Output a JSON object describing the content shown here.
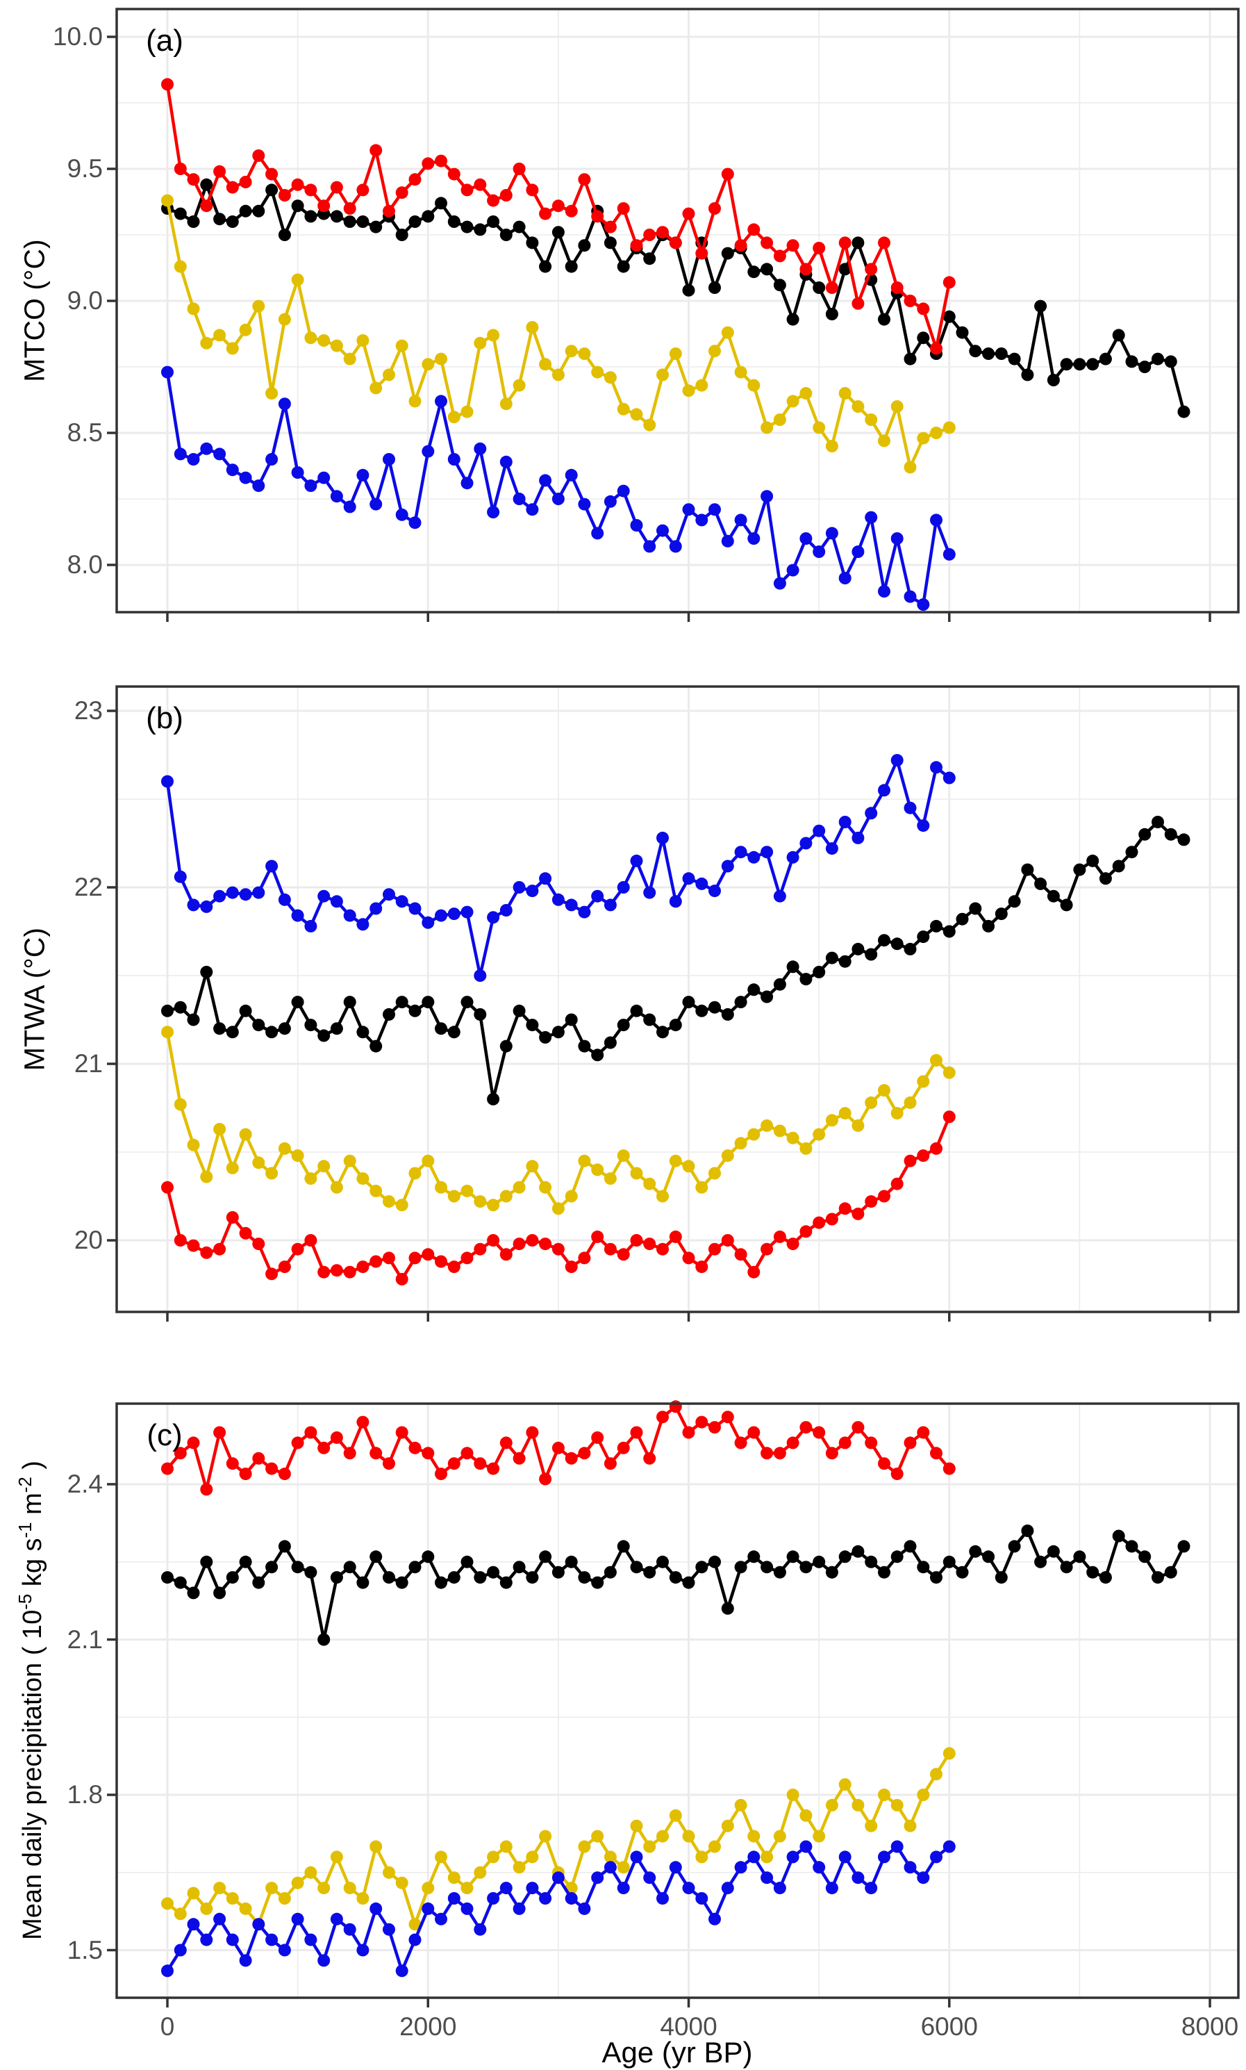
{
  "figure": {
    "x_axis": {
      "label": "Age (yr BP)",
      "major_ticks": [
        0,
        2000,
        4000,
        6000,
        8000
      ],
      "minor_ticks": [
        1000,
        3000,
        5000,
        7000
      ],
      "tick_labels": [
        "0",
        "2000",
        "4000",
        "6000",
        "8000"
      ],
      "range": [
        -390,
        8220
      ],
      "sample_step_years": 100
    },
    "series_colors": {
      "red": "#f80000",
      "black": "#000000",
      "yellow": "#e2be00",
      "blue": "#0b0be6"
    },
    "grid_color": "#ebebeb",
    "tick_label_color": "#4d4d4d",
    "panel_border_color": "#333333"
  },
  "chart_data": [
    {
      "type": "line",
      "panel_label": "(a)",
      "ylabel_parts": [
        {
          "text": "MTCO (°C)"
        }
      ],
      "yticks_major": [
        10.0,
        9.5,
        9.0,
        8.5,
        8.0
      ],
      "ytick_labels": [
        "10.0",
        "9.5",
        "9.0",
        "8.5",
        "8.0"
      ],
      "yticks_minor": [
        9.75,
        9.25,
        8.75,
        8.25
      ],
      "ylim": [
        7.87,
        10.11
      ],
      "series": [
        {
          "name": "black",
          "color_key": "black",
          "x_start": 0,
          "values": [
            9.35,
            9.33,
            9.3,
            9.44,
            9.31,
            9.3,
            9.34,
            9.34,
            9.42,
            9.25,
            9.36,
            9.32,
            9.33,
            9.32,
            9.3,
            9.3,
            9.28,
            9.32,
            9.25,
            9.3,
            9.32,
            9.37,
            9.3,
            9.28,
            9.27,
            9.3,
            9.25,
            9.28,
            9.22,
            9.13,
            9.26,
            9.13,
            9.21,
            9.34,
            9.22,
            9.13,
            9.2,
            9.16,
            9.25,
            9.22,
            9.04,
            9.22,
            9.05,
            9.18,
            9.2,
            9.11,
            9.12,
            9.06,
            8.93,
            9.1,
            9.05,
            8.95,
            9.12,
            9.22,
            9.08,
            8.93,
            9.03,
            8.78,
            8.86,
            8.8,
            8.94,
            8.88,
            8.81,
            8.8,
            8.8,
            8.78,
            8.72,
            8.98,
            8.7,
            8.76,
            8.76,
            8.76,
            8.78,
            8.87,
            8.77,
            8.75,
            8.78,
            8.77,
            8.58
          ]
        },
        {
          "name": "yellow",
          "color_key": "yellow",
          "x_start": 0,
          "values": [
            9.38,
            9.13,
            8.97,
            8.84,
            8.87,
            8.82,
            8.89,
            8.98,
            8.65,
            8.93,
            9.08,
            8.86,
            8.85,
            8.83,
            8.78,
            8.85,
            8.67,
            8.72,
            8.83,
            8.62,
            8.76,
            8.78,
            8.56,
            8.58,
            8.84,
            8.87,
            8.61,
            8.68,
            8.9,
            8.76,
            8.72,
            8.81,
            8.8,
            8.73,
            8.71,
            8.59,
            8.57,
            8.53,
            8.72,
            8.8,
            8.66,
            8.68,
            8.81,
            8.88,
            8.73,
            8.68,
            8.52,
            8.55,
            8.62,
            8.65,
            8.52,
            8.45,
            8.65,
            8.6,
            8.55,
            8.47,
            8.6,
            8.37,
            8.48,
            8.5,
            8.52
          ]
        },
        {
          "name": "blue",
          "color_key": "blue",
          "x_start": 0,
          "values": [
            8.73,
            8.42,
            8.4,
            8.44,
            8.42,
            8.36,
            8.33,
            8.3,
            8.4,
            8.61,
            8.35,
            8.3,
            8.33,
            8.26,
            8.22,
            8.34,
            8.23,
            8.4,
            8.19,
            8.16,
            8.43,
            8.62,
            8.4,
            8.31,
            8.44,
            8.2,
            8.39,
            8.25,
            8.21,
            8.32,
            8.25,
            8.34,
            8.23,
            8.12,
            8.24,
            8.28,
            8.15,
            8.07,
            8.13,
            8.07,
            8.21,
            8.17,
            8.21,
            8.09,
            8.17,
            8.1,
            8.26,
            7.93,
            7.98,
            8.1,
            8.05,
            8.12,
            7.95,
            8.05,
            8.18,
            7.9,
            8.1,
            7.88,
            7.85,
            8.17,
            8.04
          ]
        },
        {
          "name": "red",
          "color_key": "red",
          "x_start": 0,
          "values": [
            9.82,
            9.5,
            9.46,
            9.36,
            9.49,
            9.43,
            9.45,
            9.55,
            9.48,
            9.4,
            9.44,
            9.42,
            9.36,
            9.43,
            9.35,
            9.42,
            9.57,
            9.34,
            9.41,
            9.46,
            9.52,
            9.53,
            9.48,
            9.42,
            9.44,
            9.38,
            9.4,
            9.5,
            9.42,
            9.33,
            9.36,
            9.34,
            9.46,
            9.32,
            9.28,
            9.35,
            9.21,
            9.25,
            9.26,
            9.22,
            9.33,
            9.18,
            9.35,
            9.48,
            9.21,
            9.27,
            9.22,
            9.17,
            9.21,
            9.12,
            9.2,
            9.05,
            9.22,
            8.99,
            9.12,
            9.22,
            9.05,
            9.0,
            8.97,
            8.82,
            9.07
          ]
        }
      ]
    },
    {
      "type": "line",
      "panel_label": "(b)",
      "ylabel_parts": [
        {
          "text": "MTWA (°C)"
        }
      ],
      "yticks_major": [
        23,
        22,
        21,
        20
      ],
      "ytick_labels": [
        "23",
        "22",
        "21",
        "20"
      ],
      "yticks_minor": [
        22.5,
        21.5,
        20.5
      ],
      "ylim": [
        19.59,
        23.14
      ],
      "series": [
        {
          "name": "black",
          "color_key": "black",
          "x_start": 0,
          "values": [
            21.3,
            21.32,
            21.25,
            21.52,
            21.2,
            21.18,
            21.3,
            21.22,
            21.18,
            21.2,
            21.35,
            21.22,
            21.16,
            21.2,
            21.35,
            21.18,
            21.1,
            21.28,
            21.35,
            21.3,
            21.35,
            21.2,
            21.18,
            21.35,
            21.28,
            20.8,
            21.1,
            21.3,
            21.22,
            21.15,
            21.18,
            21.25,
            21.1,
            21.05,
            21.12,
            21.22,
            21.3,
            21.25,
            21.18,
            21.22,
            21.35,
            21.3,
            21.32,
            21.28,
            21.35,
            21.42,
            21.38,
            21.45,
            21.55,
            21.48,
            21.52,
            21.6,
            21.58,
            21.65,
            21.62,
            21.7,
            21.68,
            21.65,
            21.72,
            21.78,
            21.75,
            21.82,
            21.88,
            21.78,
            21.85,
            21.92,
            22.1,
            22.02,
            21.95,
            21.9,
            22.1,
            22.15,
            22.05,
            22.12,
            22.2,
            22.3,
            22.37,
            22.3,
            22.27
          ]
        },
        {
          "name": "yellow",
          "color_key": "yellow",
          "x_start": 0,
          "values": [
            21.18,
            20.77,
            20.54,
            20.36,
            20.63,
            20.41,
            20.6,
            20.44,
            20.38,
            20.52,
            20.48,
            20.35,
            20.42,
            20.3,
            20.45,
            20.35,
            20.28,
            20.22,
            20.2,
            20.38,
            20.45,
            20.3,
            20.25,
            20.28,
            20.22,
            20.2,
            20.25,
            20.3,
            20.42,
            20.3,
            20.18,
            20.25,
            20.45,
            20.4,
            20.35,
            20.48,
            20.38,
            20.32,
            20.25,
            20.45,
            20.42,
            20.3,
            20.38,
            20.48,
            20.55,
            20.6,
            20.65,
            20.62,
            20.58,
            20.52,
            20.6,
            20.68,
            20.72,
            20.65,
            20.78,
            20.85,
            20.72,
            20.78,
            20.9,
            21.02,
            20.95
          ]
        },
        {
          "name": "blue",
          "color_key": "blue",
          "x_start": 0,
          "values": [
            22.6,
            22.06,
            21.9,
            21.89,
            21.95,
            21.97,
            21.96,
            21.97,
            22.12,
            21.93,
            21.84,
            21.78,
            21.95,
            21.92,
            21.84,
            21.79,
            21.88,
            21.96,
            21.92,
            21.88,
            21.8,
            21.84,
            21.85,
            21.86,
            21.5,
            21.83,
            21.87,
            22.0,
            21.98,
            22.05,
            21.93,
            21.9,
            21.86,
            21.95,
            21.9,
            22.0,
            22.15,
            21.97,
            22.28,
            21.92,
            22.05,
            22.02,
            21.98,
            22.12,
            22.2,
            22.17,
            22.2,
            21.95,
            22.17,
            22.25,
            22.32,
            22.22,
            22.37,
            22.28,
            22.42,
            22.55,
            22.72,
            22.45,
            22.35,
            22.68,
            22.62
          ]
        },
        {
          "name": "red",
          "color_key": "red",
          "x_start": 0,
          "values": [
            20.3,
            20.0,
            19.97,
            19.93,
            19.95,
            20.13,
            20.04,
            19.98,
            19.81,
            19.85,
            19.95,
            20.0,
            19.82,
            19.83,
            19.82,
            19.85,
            19.88,
            19.9,
            19.78,
            19.9,
            19.92,
            19.88,
            19.85,
            19.9,
            19.95,
            20.0,
            19.92,
            19.98,
            20.0,
            19.98,
            19.95,
            19.85,
            19.9,
            20.02,
            19.95,
            19.92,
            20.0,
            19.98,
            19.95,
            20.02,
            19.9,
            19.85,
            19.95,
            20.0,
            19.92,
            19.82,
            19.95,
            20.02,
            19.98,
            20.05,
            20.1,
            20.12,
            20.18,
            20.15,
            20.22,
            20.25,
            20.32,
            20.45,
            20.48,
            20.52,
            20.7
          ]
        }
      ]
    },
    {
      "type": "line",
      "panel_label": "(c)",
      "ylabel_parts": [
        {
          "text": "Mean daily precipitation ( 10"
        },
        {
          "text": "-5",
          "sup": true
        },
        {
          "text": " kg s"
        },
        {
          "text": "-1",
          "sup": true
        },
        {
          "text": " m"
        },
        {
          "text": "-2",
          "sup": true
        },
        {
          "text": " )"
        }
      ],
      "yticks_major": [
        2.4,
        2.1,
        1.8,
        1.5
      ],
      "ytick_labels": [
        "2.4",
        "2.1",
        "1.8",
        "1.5"
      ],
      "yticks_minor": [
        2.25,
        1.95,
        1.65
      ],
      "ylim": [
        1.42,
        2.56
      ],
      "series": [
        {
          "name": "black",
          "color_key": "black",
          "x_start": 0,
          "values": [
            2.22,
            2.21,
            2.19,
            2.25,
            2.19,
            2.22,
            2.25,
            2.21,
            2.24,
            2.28,
            2.24,
            2.23,
            2.1,
            2.22,
            2.24,
            2.21,
            2.26,
            2.22,
            2.21,
            2.24,
            2.26,
            2.21,
            2.22,
            2.25,
            2.22,
            2.23,
            2.21,
            2.24,
            2.22,
            2.26,
            2.23,
            2.25,
            2.22,
            2.21,
            2.23,
            2.28,
            2.24,
            2.23,
            2.25,
            2.22,
            2.21,
            2.24,
            2.25,
            2.16,
            2.24,
            2.26,
            2.24,
            2.23,
            2.26,
            2.24,
            2.25,
            2.23,
            2.26,
            2.27,
            2.25,
            2.23,
            2.26,
            2.28,
            2.24,
            2.22,
            2.25,
            2.23,
            2.27,
            2.26,
            2.22,
            2.28,
            2.31,
            2.25,
            2.27,
            2.24,
            2.26,
            2.23,
            2.22,
            2.3,
            2.28,
            2.26,
            2.22,
            2.23,
            2.28
          ]
        },
        {
          "name": "yellow",
          "color_key": "yellow",
          "x_start": 0,
          "values": [
            1.59,
            1.57,
            1.61,
            1.58,
            1.62,
            1.6,
            1.58,
            1.55,
            1.62,
            1.6,
            1.63,
            1.65,
            1.62,
            1.68,
            1.62,
            1.6,
            1.7,
            1.65,
            1.63,
            1.55,
            1.62,
            1.68,
            1.64,
            1.62,
            1.65,
            1.68,
            1.7,
            1.66,
            1.68,
            1.72,
            1.65,
            1.62,
            1.7,
            1.72,
            1.68,
            1.66,
            1.74,
            1.7,
            1.72,
            1.76,
            1.72,
            1.68,
            1.7,
            1.74,
            1.78,
            1.72,
            1.68,
            1.72,
            1.8,
            1.76,
            1.72,
            1.78,
            1.82,
            1.78,
            1.74,
            1.8,
            1.78,
            1.74,
            1.8,
            1.84,
            1.88
          ]
        },
        {
          "name": "blue",
          "color_key": "blue",
          "x_start": 0,
          "values": [
            1.46,
            1.5,
            1.55,
            1.52,
            1.56,
            1.52,
            1.48,
            1.55,
            1.52,
            1.5,
            1.56,
            1.52,
            1.48,
            1.56,
            1.54,
            1.5,
            1.58,
            1.54,
            1.46,
            1.52,
            1.58,
            1.56,
            1.6,
            1.58,
            1.54,
            1.6,
            1.62,
            1.58,
            1.62,
            1.6,
            1.64,
            1.6,
            1.58,
            1.64,
            1.66,
            1.62,
            1.68,
            1.64,
            1.6,
            1.66,
            1.62,
            1.6,
            1.56,
            1.62,
            1.66,
            1.68,
            1.64,
            1.62,
            1.68,
            1.7,
            1.66,
            1.62,
            1.68,
            1.64,
            1.62,
            1.68,
            1.7,
            1.66,
            1.64,
            1.68,
            1.7
          ]
        },
        {
          "name": "red",
          "color_key": "red",
          "x_start": 0,
          "values": [
            2.43,
            2.46,
            2.48,
            2.39,
            2.5,
            2.44,
            2.42,
            2.45,
            2.43,
            2.42,
            2.48,
            2.5,
            2.47,
            2.49,
            2.46,
            2.52,
            2.46,
            2.44,
            2.5,
            2.47,
            2.46,
            2.42,
            2.44,
            2.46,
            2.44,
            2.43,
            2.48,
            2.45,
            2.5,
            2.41,
            2.47,
            2.45,
            2.46,
            2.49,
            2.44,
            2.47,
            2.5,
            2.45,
            2.53,
            2.55,
            2.5,
            2.52,
            2.51,
            2.53,
            2.48,
            2.5,
            2.46,
            2.46,
            2.48,
            2.51,
            2.5,
            2.46,
            2.48,
            2.51,
            2.48,
            2.44,
            2.42,
            2.48,
            2.5,
            2.46,
            2.43
          ]
        }
      ]
    }
  ]
}
